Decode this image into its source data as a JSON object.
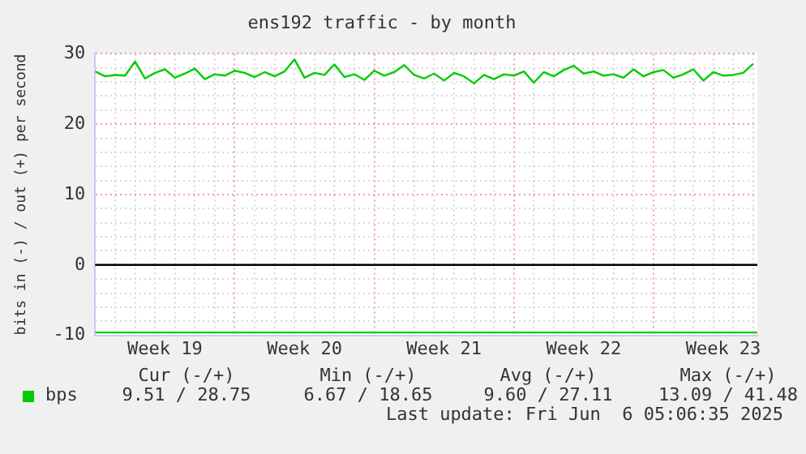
{
  "chart_data": {
    "type": "line",
    "title": "ens192 traffic - by month",
    "ylabel": "bits in (-) / out (+) per second",
    "annotations": [
      "Cur (-/+)",
      "Min (-/+)",
      "Avg (-/+)",
      "Max (-/+)",
      "9.51 / 28.75",
      "6.67 / 18.65",
      "9.60 / 27.11",
      "13.09 / 41.48",
      "Last update: Fri Jun  6 05:06:35 2025"
    ],
    "series": [
      {
        "name": "bps",
        "color": "#00cc00",
        "x": [
          "2025-05-04T00:00",
          "2025-05-04T12:00",
          "2025-05-05T00:00",
          "2025-05-05T12:00",
          "2025-05-06T00:00",
          "2025-05-06T12:00",
          "2025-05-07T00:00",
          "2025-05-07T12:00",
          "2025-05-08T00:00",
          "2025-05-08T12:00",
          "2025-05-09T00:00",
          "2025-05-09T12:00",
          "2025-05-10T00:00",
          "2025-05-10T12:00",
          "2025-05-11T00:00",
          "2025-05-11T12:00",
          "2025-05-12T00:00",
          "2025-05-12T12:00",
          "2025-05-13T00:00",
          "2025-05-13T12:00",
          "2025-05-14T00:00",
          "2025-05-14T12:00",
          "2025-05-15T00:00",
          "2025-05-15T12:00",
          "2025-05-16T00:00",
          "2025-05-16T12:00",
          "2025-05-17T00:00",
          "2025-05-17T12:00",
          "2025-05-18T00:00",
          "2025-05-18T12:00",
          "2025-05-19T00:00",
          "2025-05-19T12:00",
          "2025-05-20T00:00",
          "2025-05-20T12:00",
          "2025-05-21T00:00",
          "2025-05-21T12:00",
          "2025-05-22T00:00",
          "2025-05-22T12:00",
          "2025-05-23T00:00",
          "2025-05-23T12:00",
          "2025-05-24T00:00",
          "2025-05-24T12:00",
          "2025-05-25T00:00",
          "2025-05-25T12:00",
          "2025-05-26T00:00",
          "2025-05-26T12:00",
          "2025-05-27T00:00",
          "2025-05-27T12:00",
          "2025-05-28T00:00",
          "2025-05-28T12:00",
          "2025-05-29T00:00",
          "2025-05-29T12:00",
          "2025-05-30T00:00",
          "2025-05-30T12:00",
          "2025-05-31T00:00",
          "2025-05-31T12:00",
          "2025-06-01T00:00",
          "2025-06-01T12:00",
          "2025-06-02T00:00",
          "2025-06-02T12:00",
          "2025-06-03T00:00",
          "2025-06-03T12:00",
          "2025-06-04T00:00",
          "2025-06-04T12:00",
          "2025-06-05T00:00",
          "2025-06-05T12:00",
          "2025-06-06T00:00"
        ],
        "values": [
          27.5,
          26.8,
          27.0,
          26.9,
          28.9,
          26.5,
          27.3,
          27.8,
          26.6,
          27.2,
          27.9,
          26.4,
          27.1,
          26.9,
          27.6,
          27.3,
          26.7,
          27.4,
          26.8,
          27.5,
          29.2,
          26.6,
          27.3,
          27.0,
          28.5,
          26.7,
          27.1,
          26.3,
          27.6,
          26.9,
          27.4,
          28.4,
          27.0,
          26.5,
          27.2,
          26.2,
          27.3,
          26.8,
          25.8,
          27.0,
          26.4,
          27.1,
          26.9,
          27.5,
          25.9,
          27.4,
          26.8,
          27.7,
          28.3,
          27.2,
          27.5,
          26.9,
          27.1,
          26.6,
          27.8,
          26.8,
          27.4,
          27.7,
          26.6,
          27.1,
          27.8,
          26.2,
          27.4,
          26.9,
          27.0,
          27.3,
          28.6
        ]
      },
      {
        "color": "#00cc00",
        "x": [
          "2025-05-04",
          "2025-05-09",
          "2025-05-14",
          "2025-05-19",
          "2025-05-24",
          "2025-05-29",
          "2025-06-03",
          "2025-06-06T05:00"
        ],
        "values": [
          -9.6,
          -9.6,
          -9.6,
          -9.6,
          -9.6,
          -9.6,
          -9.6,
          -9.6
        ]
      }
    ],
    "xlim": [
      "2025-05-04T00:00",
      "2025-06-06T05:00"
    ],
    "xticks": [
      {
        "value": "2025-05-05",
        "label": null
      },
      {
        "value": "2025-05-06",
        "label": null
      },
      {
        "value": "2025-05-07",
        "label": null
      },
      {
        "value": "2025-05-07T12:00",
        "label": "Week 19"
      },
      {
        "value": "2025-05-08",
        "label": null
      },
      {
        "value": "2025-05-09",
        "label": null
      },
      {
        "value": "2025-05-10",
        "label": null
      },
      {
        "value": "2025-05-11",
        "label": null
      },
      {
        "value": "2025-05-12",
        "label": null
      },
      {
        "value": "2025-05-13",
        "label": null
      },
      {
        "value": "2025-05-14",
        "label": null
      },
      {
        "value": "2025-05-14T12:00",
        "label": "Week 20"
      },
      {
        "value": "2025-05-15",
        "label": null
      },
      {
        "value": "2025-05-16",
        "label": null
      },
      {
        "value": "2025-05-17",
        "label": null
      },
      {
        "value": "2025-05-18",
        "label": null
      },
      {
        "value": "2025-05-19",
        "label": null
      },
      {
        "value": "2025-05-20",
        "label": null
      },
      {
        "value": "2025-05-21",
        "label": null
      },
      {
        "value": "2025-05-21T12:00",
        "label": "Week 21"
      },
      {
        "value": "2025-05-22",
        "label": null
      },
      {
        "value": "2025-05-23",
        "label": null
      },
      {
        "value": "2025-05-24",
        "label": null
      },
      {
        "value": "2025-05-25",
        "label": null
      },
      {
        "value": "2025-05-26",
        "label": null
      },
      {
        "value": "2025-05-27",
        "label": null
      },
      {
        "value": "2025-05-28",
        "label": null
      },
      {
        "value": "2025-05-28T12:00",
        "label": "Week 22"
      },
      {
        "value": "2025-05-29",
        "label": null
      },
      {
        "value": "2025-05-30",
        "label": null
      },
      {
        "value": "2025-05-31",
        "label": null
      },
      {
        "value": "2025-06-01",
        "label": null
      },
      {
        "value": "2025-06-02",
        "label": null
      },
      {
        "value": "2025-06-03",
        "label": null
      },
      {
        "value": "2025-06-04",
        "label": null
      },
      {
        "value": "2025-06-04T12:00",
        "label": "Week 23"
      },
      {
        "value": "2025-06-05",
        "label": null
      },
      {
        "value": "2025-06-06",
        "label": null
      }
    ],
    "ylim": [
      -10,
      30
    ],
    "yticks": [
      -10,
      {
        "value": -8,
        "label": null
      },
      {
        "value": -6,
        "label": null
      },
      {
        "value": -4,
        "label": null
      },
      {
        "value": -2,
        "label": null
      },
      0,
      {
        "value": 2,
        "label": null
      },
      {
        "value": 4,
        "label": null
      },
      {
        "value": 6,
        "label": null
      },
      {
        "value": 8,
        "label": null
      },
      10,
      {
        "value": 12,
        "label": null
      },
      {
        "value": 14,
        "label": null
      },
      {
        "value": 16,
        "label": null
      },
      {
        "value": 18,
        "label": null
      },
      20,
      {
        "value": 22,
        "label": null
      },
      {
        "value": 24,
        "label": null
      },
      {
        "value": 26,
        "label": null
      },
      {
        "value": 28,
        "label": null
      },
      30
    ],
    "ref_lines": [
      {
        "axis": "y",
        "value": 0,
        "color": "#000000"
      }
    ],
    "grid": true,
    "legend": "bottom left",
    "marker": "none",
    "line_style": "solid"
  }
}
